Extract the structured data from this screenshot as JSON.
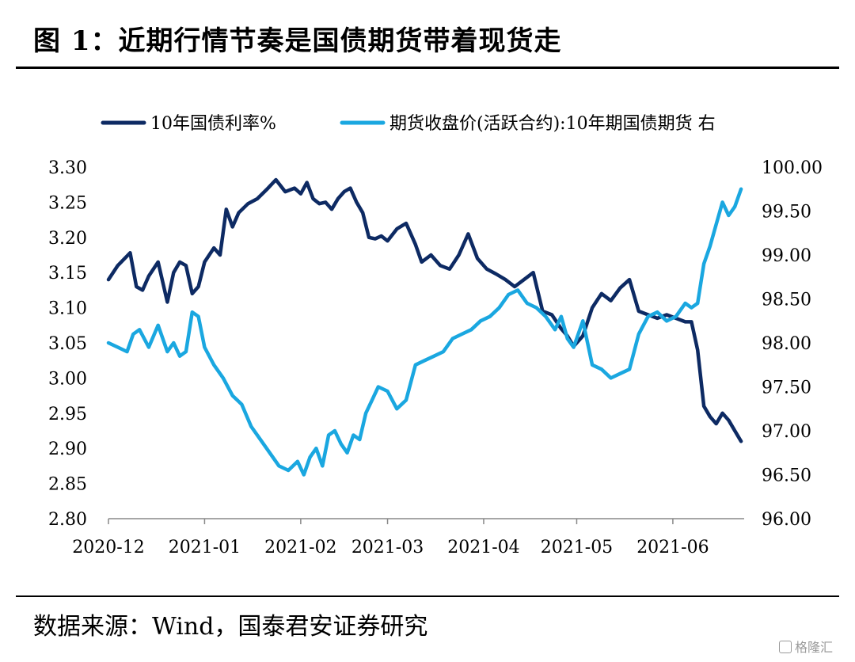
{
  "header": {
    "title": "图 1：近期行情节奏是国债期货带着现货走"
  },
  "footer": {
    "source": "数据来源：Wind，国泰君安证券研究"
  },
  "watermark": {
    "text": "格隆汇"
  },
  "chart_data": {
    "type": "line",
    "x_ticks": [
      "2020-12",
      "2021-01",
      "2021-02",
      "2021-03",
      "2021-04",
      "2021-05",
      "2021-06"
    ],
    "y_left": {
      "range": [
        2.8,
        3.3
      ],
      "ticks": [
        "3.30",
        "3.25",
        "3.20",
        "3.15",
        "3.10",
        "3.05",
        "3.00",
        "2.95",
        "2.90",
        "2.85",
        "2.80"
      ]
    },
    "y_right": {
      "range": [
        96.0,
        100.0
      ],
      "ticks": [
        "100.00",
        "99.50",
        "99.00",
        "98.50",
        "98.00",
        "97.50",
        "97.00",
        "96.50",
        "96.00"
      ]
    },
    "grid": false,
    "legend_position": "top",
    "series": [
      {
        "name": "10年国债利率%",
        "axis": "left",
        "color": "#0d2a63",
        "x": [
          "2020-12-01",
          "2020-12-04",
          "2020-12-08",
          "2020-12-10",
          "2020-12-12",
          "2020-12-14",
          "2020-12-17",
          "2020-12-20",
          "2020-12-22",
          "2020-12-24",
          "2020-12-26",
          "2020-12-28",
          "2020-12-30",
          "2021-01-01",
          "2021-01-04",
          "2021-01-06",
          "2021-01-08",
          "2021-01-10",
          "2021-01-12",
          "2021-01-15",
          "2021-01-18",
          "2021-01-21",
          "2021-01-24",
          "2021-01-27",
          "2021-01-30",
          "2021-02-01",
          "2021-02-03",
          "2021-02-05",
          "2021-02-07",
          "2021-02-09",
          "2021-02-11",
          "2021-02-13",
          "2021-02-15",
          "2021-02-17",
          "2021-02-19",
          "2021-02-21",
          "2021-02-23",
          "2021-02-25",
          "2021-02-27",
          "2021-03-01",
          "2021-03-04",
          "2021-03-07",
          "2021-03-10",
          "2021-03-12",
          "2021-03-15",
          "2021-03-18",
          "2021-03-21",
          "2021-03-24",
          "2021-03-27",
          "2021-03-30",
          "2021-04-02",
          "2021-04-05",
          "2021-04-08",
          "2021-04-11",
          "2021-04-14",
          "2021-04-17",
          "2021-04-20",
          "2021-04-23",
          "2021-04-26",
          "2021-04-28",
          "2021-04-30",
          "2021-05-03",
          "2021-05-06",
          "2021-05-09",
          "2021-05-12",
          "2021-05-15",
          "2021-05-18",
          "2021-05-21",
          "2021-05-24",
          "2021-05-27",
          "2021-05-30",
          "2021-06-02",
          "2021-06-05",
          "2021-06-07",
          "2021-06-09",
          "2021-06-11",
          "2021-06-13",
          "2021-06-15",
          "2021-06-17",
          "2021-06-19",
          "2021-06-21",
          "2021-06-23"
        ],
        "values": [
          3.14,
          3.16,
          3.178,
          3.13,
          3.125,
          3.145,
          3.165,
          3.108,
          3.15,
          3.165,
          3.16,
          3.12,
          3.13,
          3.165,
          3.185,
          3.175,
          3.24,
          3.215,
          3.235,
          3.248,
          3.255,
          3.268,
          3.282,
          3.265,
          3.27,
          3.262,
          3.278,
          3.255,
          3.248,
          3.25,
          3.24,
          3.255,
          3.265,
          3.27,
          3.25,
          3.235,
          3.2,
          3.198,
          3.202,
          3.195,
          3.212,
          3.22,
          3.19,
          3.165,
          3.175,
          3.16,
          3.155,
          3.175,
          3.205,
          3.17,
          3.155,
          3.148,
          3.14,
          3.13,
          3.14,
          3.15,
          3.095,
          3.09,
          3.07,
          3.06,
          3.045,
          3.06,
          3.1,
          3.12,
          3.11,
          3.128,
          3.14,
          3.095,
          3.09,
          3.085,
          3.09,
          3.085,
          3.08,
          3.08,
          3.04,
          2.96,
          2.945,
          2.935,
          2.95,
          2.94,
          2.925,
          2.91
        ]
      },
      {
        "name": "期货收盘价(活跃合约):10年期国债期货 右",
        "axis": "right",
        "color": "#1aa7e0",
        "x": [
          "2020-12-01",
          "2020-12-04",
          "2020-12-07",
          "2020-12-09",
          "2020-12-11",
          "2020-12-14",
          "2020-12-17",
          "2020-12-20",
          "2020-12-22",
          "2020-12-24",
          "2020-12-26",
          "2020-12-28",
          "2020-12-30",
          "2021-01-01",
          "2021-01-04",
          "2021-01-07",
          "2021-01-10",
          "2021-01-13",
          "2021-01-16",
          "2021-01-19",
          "2021-01-22",
          "2021-01-25",
          "2021-01-28",
          "2021-01-31",
          "2021-02-02",
          "2021-02-04",
          "2021-02-06",
          "2021-02-08",
          "2021-02-10",
          "2021-02-12",
          "2021-02-14",
          "2021-02-16",
          "2021-02-18",
          "2021-02-20",
          "2021-02-22",
          "2021-02-24",
          "2021-02-26",
          "2021-03-01",
          "2021-03-04",
          "2021-03-07",
          "2021-03-10",
          "2021-03-13",
          "2021-03-16",
          "2021-03-19",
          "2021-03-22",
          "2021-03-25",
          "2021-03-28",
          "2021-03-31",
          "2021-04-03",
          "2021-04-06",
          "2021-04-09",
          "2021-04-12",
          "2021-04-15",
          "2021-04-18",
          "2021-04-21",
          "2021-04-24",
          "2021-04-26",
          "2021-04-28",
          "2021-04-30",
          "2021-05-03",
          "2021-05-06",
          "2021-05-09",
          "2021-05-12",
          "2021-05-15",
          "2021-05-18",
          "2021-05-21",
          "2021-05-24",
          "2021-05-27",
          "2021-05-30",
          "2021-06-02",
          "2021-06-05",
          "2021-06-07",
          "2021-06-09",
          "2021-06-11",
          "2021-06-13",
          "2021-06-15",
          "2021-06-17",
          "2021-06-19",
          "2021-06-21",
          "2021-06-23"
        ],
        "values": [
          98.0,
          97.95,
          97.9,
          98.1,
          98.15,
          97.95,
          98.2,
          97.9,
          98.0,
          97.85,
          97.9,
          98.35,
          98.3,
          97.95,
          97.75,
          97.6,
          97.4,
          97.3,
          97.05,
          96.9,
          96.75,
          96.6,
          96.55,
          96.65,
          96.5,
          96.7,
          96.8,
          96.6,
          96.95,
          97.0,
          96.85,
          96.75,
          96.95,
          96.9,
          97.2,
          97.35,
          97.5,
          97.45,
          97.25,
          97.35,
          97.75,
          97.8,
          97.85,
          97.9,
          98.05,
          98.1,
          98.15,
          98.25,
          98.3,
          98.4,
          98.55,
          98.6,
          98.45,
          98.4,
          98.3,
          98.15,
          98.3,
          98.05,
          97.95,
          98.25,
          97.75,
          97.7,
          97.6,
          97.65,
          97.7,
          98.1,
          98.3,
          98.35,
          98.25,
          98.3,
          98.45,
          98.4,
          98.45,
          98.9,
          99.1,
          99.35,
          99.6,
          99.45,
          99.55,
          99.75
        ]
      }
    ]
  }
}
